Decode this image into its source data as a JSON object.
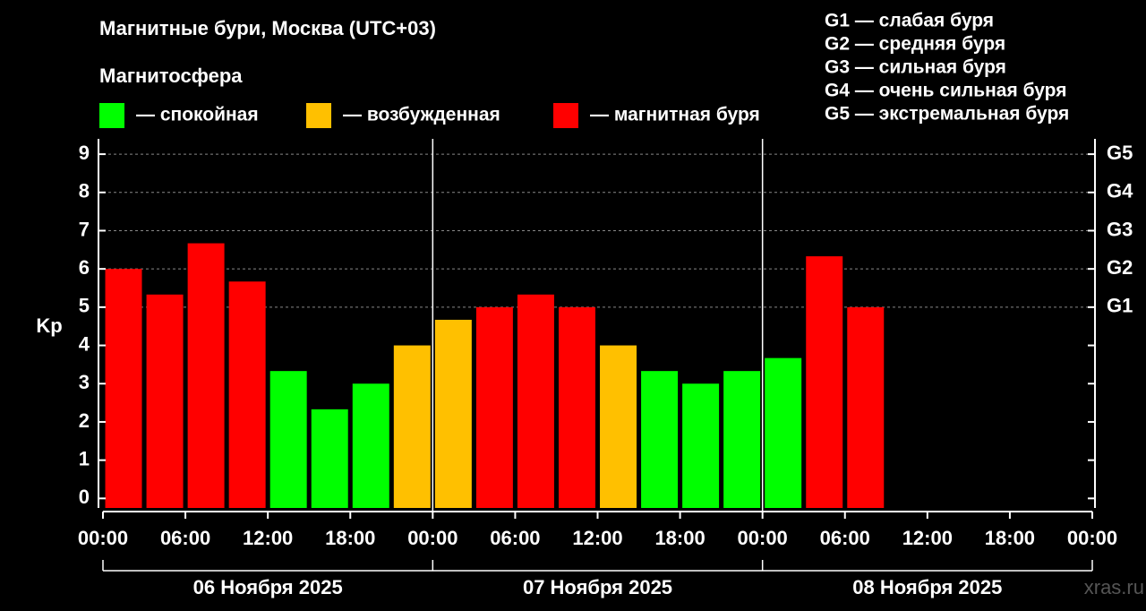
{
  "chart_data": {
    "type": "bar",
    "title": "Магнитные бури, Москва (UTC+03)",
    "legend_title": "Магнитосфера",
    "y_label": "Kp",
    "storm_scale": [
      "G1 — слабая буря",
      "G2 — средняя буря",
      "G3 — сильная буря",
      "G4 — очень сильная буря",
      "G5 — экстремальная буря"
    ],
    "x": [
      1.5,
      4.5,
      7.5,
      10.5,
      13.5,
      16.5,
      19.5,
      22.5,
      25.5,
      28.5,
      31.5,
      34.5,
      37.5,
      40.5,
      43.5,
      46.5,
      49.5,
      52.5,
      55.5,
      58.5,
      61.5,
      64.5,
      67.5,
      70.5
    ],
    "series": [
      {
        "name": "— спокойная",
        "color": "#00ff00",
        "values": [
          null,
          null,
          null,
          null,
          3.33,
          2.33,
          3.0,
          null,
          null,
          null,
          null,
          null,
          null,
          3.33,
          3.0,
          3.33,
          3.67,
          null,
          null,
          null,
          null,
          null,
          null,
          null
        ]
      },
      {
        "name": "— возбужденная",
        "color": "#ffc000",
        "values": [
          null,
          null,
          null,
          null,
          null,
          null,
          null,
          4.0,
          4.67,
          null,
          null,
          null,
          4.0,
          null,
          null,
          null,
          null,
          null,
          null,
          null,
          null,
          null,
          null,
          null
        ]
      },
      {
        "name": "— магнитная буря",
        "color": "#ff0000",
        "values": [
          6.0,
          5.33,
          6.67,
          5.67,
          null,
          null,
          null,
          null,
          null,
          5.0,
          5.33,
          5.0,
          null,
          null,
          null,
          null,
          null,
          6.33,
          5.0,
          null,
          null,
          null,
          null,
          null
        ]
      }
    ],
    "xlim": [
      0,
      72
    ],
    "xticks": [
      {
        "value": 0,
        "label": "00:00"
      },
      {
        "value": 6,
        "label": "06:00"
      },
      {
        "value": 12,
        "label": "12:00"
      },
      {
        "value": 18,
        "label": "18:00"
      },
      {
        "value": 24,
        "label": "00:00"
      },
      {
        "value": 30,
        "label": "06:00"
      },
      {
        "value": 36,
        "label": "12:00"
      },
      {
        "value": 42,
        "label": "18:00"
      },
      {
        "value": 48,
        "label": "00:00"
      },
      {
        "value": 54,
        "label": "06:00"
      },
      {
        "value": 60,
        "label": "12:00"
      },
      {
        "value": 66,
        "label": "18:00"
      },
      {
        "value": 72,
        "label": "00:00"
      }
    ],
    "day_labels": [
      "06 Ноября 2025",
      "07 Ноября 2025",
      "08 Ноября 2025"
    ],
    "ylim": [
      -0.25,
      9.4
    ],
    "yticks": [
      0,
      1,
      2,
      3,
      4,
      5,
      6,
      7,
      8,
      9
    ],
    "y2ticks": [
      {
        "value": 5,
        "label": "G1"
      },
      {
        "value": 6,
        "label": "G2"
      },
      {
        "value": 7,
        "label": "G3"
      },
      {
        "value": 8,
        "label": "G4"
      },
      {
        "value": 9,
        "label": "G5"
      }
    ],
    "grid": true,
    "watermark": "xras.ru"
  }
}
